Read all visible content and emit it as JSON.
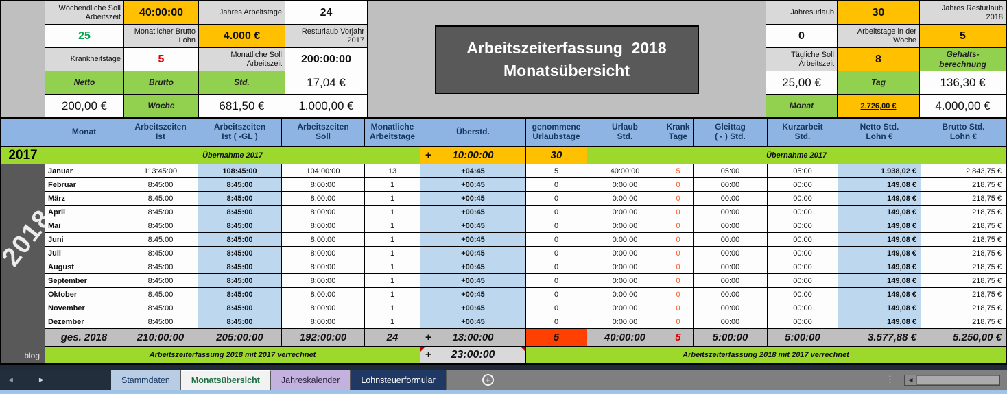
{
  "colors": {
    "accent_orange": "#FFC000",
    "lime_green": "#9CD92C",
    "salary_green": "#92D050",
    "header_blue": "#8DB4E2",
    "light_blue": "#BDD7EE",
    "dark_gray": "#595959",
    "alert_red": "#E00000",
    "orangered_cell": "#FF4000",
    "tab_navy": "#1F3864"
  },
  "icons": {
    "nav_left": "◀",
    "nav_right": "▶",
    "add_sheet": "+",
    "menu_dots": "⋮",
    "scroll_left": "◀"
  },
  "settings": {
    "rows": [
      {
        "l1": "Wöchendliche Soll\nArbeitszeit",
        "v1": "40:00:00",
        "l2": "Jahres Arbeitstage",
        "v2": "24"
      },
      {
        "l1": "Jahresurlaub",
        "v1": "30",
        "l2": "Jahres Resturlaub\n2018",
        "v2": "25"
      },
      {
        "l1": "Monatlicher Brutto\nLohn",
        "v1": "4.000 €",
        "l2": "Resturlaub Vorjahr\n2017",
        "v2": "0"
      },
      {
        "l1": "Arbeitstage in der\nWoche",
        "v1": "5",
        "l2": "Krankheitstage",
        "v2": "5"
      },
      {
        "l1": "Monatliche Soll\nArbeitszeit",
        "v1": "200:00:00",
        "l2": "Tägliche Soll\nArbeitszeit",
        "v2": "8"
      }
    ]
  },
  "title": {
    "line1": "Arbeitszeiterfassung  2018",
    "line2": "Monatsübersicht"
  },
  "salary": {
    "title": "Gehalts-\nberechnung",
    "col_netto": "Netto",
    "col_brutto": "Brutto",
    "rows": [
      {
        "label": "Std.",
        "netto": "17,04 €",
        "brutto": "25,00 €"
      },
      {
        "label": "Tag",
        "netto": "136,30 €",
        "brutto": "200,00 €"
      },
      {
        "label": "Woche",
        "netto": "681,50 €",
        "brutto": "1.000,00 €"
      },
      {
        "label": "Monat",
        "netto": "2.726,00 €",
        "brutto": "4.000,00 €"
      }
    ]
  },
  "table": {
    "headers": [
      "Monat",
      "Arbeitszeiten\nIst",
      "Arbeitszeiten\nIst ( -GL )",
      "Arbeitszeiten\nSoll",
      "Monatliche\nArbeitstage",
      "Überstd.",
      "genommene\nUrlaubstage",
      "Urlaub\nStd.",
      "Krank\nTage",
      "Gleittag\n( - ) Std.",
      "Kurzarbeit\nStd.",
      "Netto Std.\nLohn €",
      "Brutto Std.\nLohn €"
    ],
    "row2017": {
      "year": "2017",
      "carry_left": "Übernahme  2017",
      "sign": "+",
      "overtime": "10:00:00",
      "vacation_days": "30",
      "carry_right": "Übernahme  2017"
    },
    "months": [
      {
        "name": "Januar",
        "ist": "113:45:00",
        "ist_gl": "108:45:00",
        "soll": "104:00:00",
        "tage": "13",
        "ueberstd": "+04:45",
        "urlaubstage": "5",
        "urlaub_std": "40:00:00",
        "krank": "5",
        "gleittag": "05:00",
        "kurzarbeit": "05:00",
        "netto": "1.938,02 €",
        "brutto": "2.843,75 €"
      },
      {
        "name": "Februar",
        "ist": "8:45:00",
        "ist_gl": "8:45:00",
        "soll": "8:00:00",
        "tage": "1",
        "ueberstd": "+00:45",
        "urlaubstage": "0",
        "urlaub_std": "0:00:00",
        "krank": "0",
        "gleittag": "00:00",
        "kurzarbeit": "00:00",
        "netto": "149,08 €",
        "brutto": "218,75 €"
      },
      {
        "name": "März",
        "ist": "8:45:00",
        "ist_gl": "8:45:00",
        "soll": "8:00:00",
        "tage": "1",
        "ueberstd": "+00:45",
        "urlaubstage": "0",
        "urlaub_std": "0:00:00",
        "krank": "0",
        "gleittag": "00:00",
        "kurzarbeit": "00:00",
        "netto": "149,08 €",
        "brutto": "218,75 €"
      },
      {
        "name": "April",
        "ist": "8:45:00",
        "ist_gl": "8:45:00",
        "soll": "8:00:00",
        "tage": "1",
        "ueberstd": "+00:45",
        "urlaubstage": "0",
        "urlaub_std": "0:00:00",
        "krank": "0",
        "gleittag": "00:00",
        "kurzarbeit": "00:00",
        "netto": "149,08 €",
        "brutto": "218,75 €"
      },
      {
        "name": "Mai",
        "ist": "8:45:00",
        "ist_gl": "8:45:00",
        "soll": "8:00:00",
        "tage": "1",
        "ueberstd": "+00:45",
        "urlaubstage": "0",
        "urlaub_std": "0:00:00",
        "krank": "0",
        "gleittag": "00:00",
        "kurzarbeit": "00:00",
        "netto": "149,08 €",
        "brutto": "218,75 €"
      },
      {
        "name": "Juni",
        "ist": "8:45:00",
        "ist_gl": "8:45:00",
        "soll": "8:00:00",
        "tage": "1",
        "ueberstd": "+00:45",
        "urlaubstage": "0",
        "urlaub_std": "0:00:00",
        "krank": "0",
        "gleittag": "00:00",
        "kurzarbeit": "00:00",
        "netto": "149,08 €",
        "brutto": "218,75 €"
      },
      {
        "name": "Juli",
        "ist": "8:45:00",
        "ist_gl": "8:45:00",
        "soll": "8:00:00",
        "tage": "1",
        "ueberstd": "+00:45",
        "urlaubstage": "0",
        "urlaub_std": "0:00:00",
        "krank": "0",
        "gleittag": "00:00",
        "kurzarbeit": "00:00",
        "netto": "149,08 €",
        "brutto": "218,75 €"
      },
      {
        "name": "August",
        "ist": "8:45:00",
        "ist_gl": "8:45:00",
        "soll": "8:00:00",
        "tage": "1",
        "ueberstd": "+00:45",
        "urlaubstage": "0",
        "urlaub_std": "0:00:00",
        "krank": "0",
        "gleittag": "00:00",
        "kurzarbeit": "00:00",
        "netto": "149,08 €",
        "brutto": "218,75 €"
      },
      {
        "name": "September",
        "ist": "8:45:00",
        "ist_gl": "8:45:00",
        "soll": "8:00:00",
        "tage": "1",
        "ueberstd": "+00:45",
        "urlaubstage": "0",
        "urlaub_std": "0:00:00",
        "krank": "0",
        "gleittag": "00:00",
        "kurzarbeit": "00:00",
        "netto": "149,08 €",
        "brutto": "218,75 €"
      },
      {
        "name": "Oktober",
        "ist": "8:45:00",
        "ist_gl": "8:45:00",
        "soll": "8:00:00",
        "tage": "1",
        "ueberstd": "+00:45",
        "urlaubstage": "0",
        "urlaub_std": "0:00:00",
        "krank": "0",
        "gleittag": "00:00",
        "kurzarbeit": "00:00",
        "netto": "149,08 €",
        "brutto": "218,75 €"
      },
      {
        "name": "November",
        "ist": "8:45:00",
        "ist_gl": "8:45:00",
        "soll": "8:00:00",
        "tage": "1",
        "ueberstd": "+00:45",
        "urlaubstage": "0",
        "urlaub_std": "0:00:00",
        "krank": "0",
        "gleittag": "00:00",
        "kurzarbeit": "00:00",
        "netto": "149,08 €",
        "brutto": "218,75 €"
      },
      {
        "name": "Dezember",
        "ist": "8:45:00",
        "ist_gl": "8:45:00",
        "soll": "8:00:00",
        "tage": "1",
        "ueberstd": "+00:45",
        "urlaubstage": "0",
        "urlaub_std": "0:00:00",
        "krank": "0",
        "gleittag": "00:00",
        "kurzarbeit": "00:00",
        "netto": "149,08 €",
        "brutto": "218,75 €"
      }
    ],
    "total": {
      "label": "ges. 2018",
      "ist": "210:00:00",
      "ist_gl": "205:00:00",
      "soll": "192:00:00",
      "tage": "24",
      "sign": "+",
      "ueberstd": "13:00:00",
      "urlaubstage": "5",
      "urlaub_std": "40:00:00",
      "krank": "5",
      "gleittag": "5:00:00",
      "kurzarbeit": "5:00:00",
      "netto": "3.577,88 €",
      "brutto": "5.250,00 €"
    },
    "bottom": {
      "left_label": "Arbeitszeiterfassung 2018 mit 2017 verrechnet",
      "sign": "+",
      "value": "23:00:00",
      "right_label": "Arbeitszeiterfassung 2018 mit 2017 verrechnet"
    }
  },
  "sidebar": {
    "year": "2018",
    "watermark": "blog"
  },
  "tabs": [
    {
      "label": "Stammdaten"
    },
    {
      "label": "Monatsübersicht"
    },
    {
      "label": "Jahreskalender"
    },
    {
      "label": "Lohnsteuerformular"
    }
  ]
}
